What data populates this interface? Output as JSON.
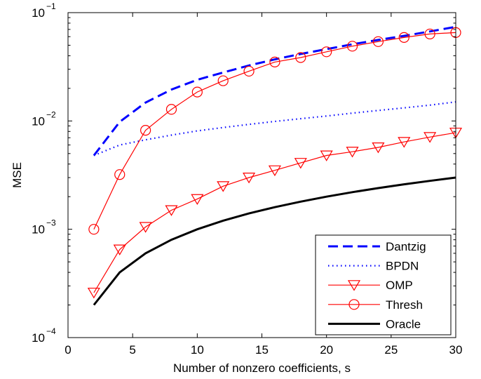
{
  "chart_data": {
    "type": "line",
    "title": "",
    "xlabel": "Number of nonzero coefficients, s",
    "ylabel": "MSE",
    "xlim": [
      0,
      30
    ],
    "ylim": [
      0.0001,
      0.1
    ],
    "yscale": "log",
    "grid": false,
    "legend_position": "bottom-right",
    "x_ticks": [
      {
        "value": 0,
        "label": "0"
      },
      {
        "value": 5,
        "label": "5"
      },
      {
        "value": 10,
        "label": "10"
      },
      {
        "value": 15,
        "label": "15"
      },
      {
        "value": 20,
        "label": "20"
      },
      {
        "value": 25,
        "label": "25"
      },
      {
        "value": 30,
        "label": "30"
      }
    ],
    "y_ticks": [
      {
        "value": 0.0001,
        "base": "10",
        "exp": "−4"
      },
      {
        "value": 0.001,
        "base": "10",
        "exp": "−3"
      },
      {
        "value": 0.01,
        "base": "10",
        "exp": "−2"
      },
      {
        "value": 0.1,
        "base": "10",
        "exp": "−1"
      }
    ],
    "x": [
      2,
      4,
      6,
      8,
      10,
      12,
      14,
      16,
      18,
      20,
      22,
      24,
      26,
      28,
      30
    ],
    "series": [
      {
        "name": "Dantzig",
        "color": "#0000ff",
        "line_style": "dashed",
        "marker": "none",
        "values": [
          0.0048,
          0.0098,
          0.0148,
          0.0195,
          0.024,
          0.028,
          0.0325,
          0.037,
          0.0415,
          0.046,
          0.051,
          0.056,
          0.061,
          0.067,
          0.074
        ]
      },
      {
        "name": "BPDN",
        "color": "#0000ff",
        "line_style": "dotted",
        "marker": "none",
        "values": [
          0.0048,
          0.006,
          0.0067,
          0.0074,
          0.0081,
          0.0087,
          0.0093,
          0.0099,
          0.0105,
          0.0111,
          0.0118,
          0.0125,
          0.0132,
          0.014,
          0.015
        ]
      },
      {
        "name": "OMP",
        "color": "#ff0000",
        "line_style": "solid",
        "marker": "triangle-down",
        "values": [
          0.00026,
          0.00065,
          0.00105,
          0.0015,
          0.0019,
          0.0025,
          0.003,
          0.0035,
          0.0041,
          0.0048,
          0.0052,
          0.0057,
          0.0064,
          0.0071,
          0.0078
        ]
      },
      {
        "name": "Thresh",
        "color": "#ff0000",
        "line_style": "solid",
        "marker": "circle",
        "values": [
          0.001,
          0.0032,
          0.0082,
          0.0128,
          0.0185,
          0.0235,
          0.0288,
          0.035,
          0.0385,
          0.0435,
          0.049,
          0.054,
          0.059,
          0.0635,
          0.0655
        ]
      },
      {
        "name": "Oracle",
        "color": "#000000",
        "line_style": "solid",
        "marker": "none",
        "values": [
          0.0002,
          0.0004,
          0.0006,
          0.0008,
          0.001,
          0.0012,
          0.0014,
          0.0016,
          0.0018,
          0.002,
          0.0022,
          0.0024,
          0.0026,
          0.0028,
          0.003
        ]
      }
    ]
  }
}
